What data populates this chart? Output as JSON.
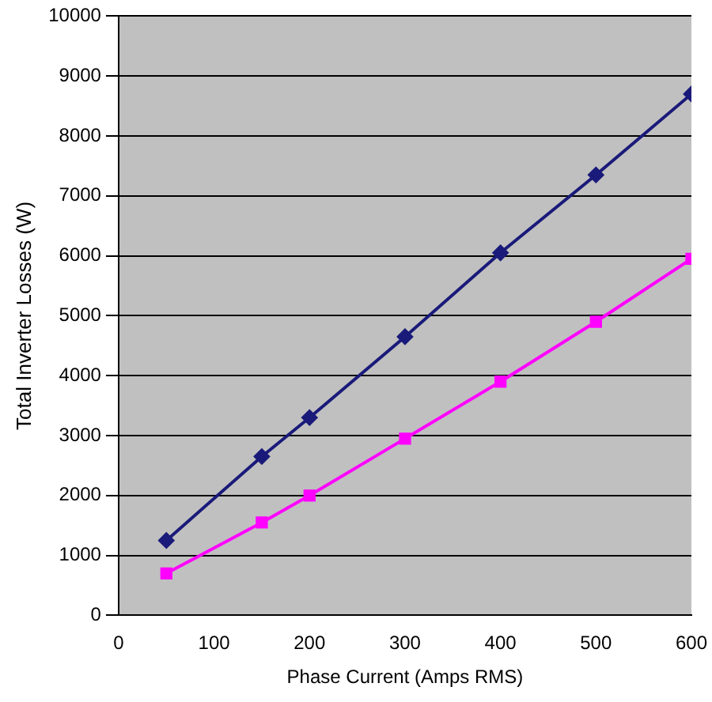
{
  "chart_data": {
    "type": "line",
    "xlabel": "Phase Current (Amps RMS)",
    "ylabel": "Total Inverter Losses (W)",
    "x": [
      50,
      150,
      200,
      300,
      400,
      500,
      600
    ],
    "series": [
      {
        "color": "#1a1a7a",
        "marker": "diamond",
        "values": [
          1250,
          2650,
          3300,
          4650,
          6050,
          7350,
          8700
        ]
      },
      {
        "color": "#ff00ff",
        "marker": "square",
        "values": [
          700,
          1550,
          2000,
          2950,
          3900,
          4900,
          5950
        ]
      }
    ],
    "xlim": [
      0,
      600
    ],
    "xticks": [
      0,
      100,
      200,
      300,
      400,
      500,
      600
    ],
    "ylim": [
      0,
      10000
    ],
    "yticks": [
      0,
      1000,
      2000,
      3000,
      4000,
      5000,
      6000,
      7000,
      8000,
      9000,
      10000
    ],
    "grid": "y",
    "legend": false
  }
}
